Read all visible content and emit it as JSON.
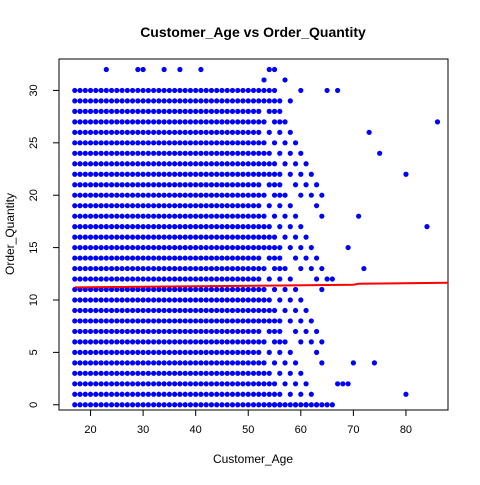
{
  "chart_data": {
    "type": "scatter",
    "title": "Customer_Age vs Order_Quantity",
    "xlabel": "Customer_Age",
    "ylabel": "Order_Quantity",
    "xlim": [
      14,
      88
    ],
    "ylim": [
      -0.5,
      33
    ],
    "xticks": [
      20,
      30,
      40,
      50,
      60,
      70,
      80
    ],
    "yticks": [
      0,
      5,
      10,
      15,
      20,
      25,
      30
    ],
    "grid": false,
    "colors": {
      "points": "#0000ff",
      "trend": "#ff0000"
    },
    "points": {
      "dense_block": {
        "x_range": [
          17,
          52
        ],
        "y_range": [
          1,
          30
        ],
        "note": "points at every integer age and quantity"
      },
      "extra": [
        [
          23,
          32
        ],
        [
          29,
          32
        ],
        [
          30,
          32
        ],
        [
          34,
          32
        ],
        [
          37,
          32
        ],
        [
          41,
          32
        ],
        [
          54,
          32
        ],
        [
          55,
          32
        ],
        [
          53,
          31
        ],
        [
          57,
          31
        ],
        [
          60,
          30
        ],
        [
          65,
          30
        ],
        [
          67,
          30
        ],
        [
          86,
          27
        ],
        [
          73,
          26
        ],
        [
          75,
          24
        ],
        [
          80,
          22
        ],
        [
          71,
          18
        ],
        [
          69,
          15
        ],
        [
          72,
          13
        ],
        [
          84,
          17
        ],
        [
          65,
          12
        ],
        [
          66,
          12
        ],
        [
          70,
          4
        ],
        [
          74,
          4
        ],
        [
          67,
          2
        ],
        [
          68,
          2
        ],
        [
          69,
          2
        ],
        [
          80,
          1
        ]
      ]
    },
    "trend_line": {
      "x": [
        17,
        70,
        71,
        88
      ],
      "y": [
        11.2,
        11.45,
        11.55,
        11.65
      ]
    }
  }
}
